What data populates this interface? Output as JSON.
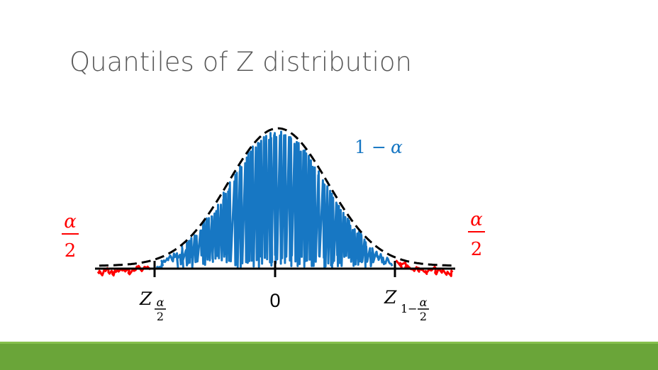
{
  "slide": {
    "title": "Quantiles of Z distribution"
  },
  "diagram": {
    "center_label": "0",
    "left_tail_fraction": {
      "num": "α",
      "den": "2"
    },
    "right_tail_fraction": {
      "num": "α",
      "den": "2"
    },
    "center_region_label": {
      "one": "1",
      "minus": "−",
      "alpha": "α"
    },
    "left_quantile": {
      "letter": "Z",
      "sub_num": "α",
      "sub_den": "2"
    },
    "right_quantile": {
      "letter": "Z",
      "sub_pre": "1−",
      "sub_num": "α",
      "sub_den": "2"
    },
    "colors": {
      "tail": "#ff0000",
      "center": "#1777c3",
      "curve": "#000000",
      "label_red": "#ff0000",
      "label_blue": "#1777c3",
      "bar": "#6aa539"
    }
  }
}
